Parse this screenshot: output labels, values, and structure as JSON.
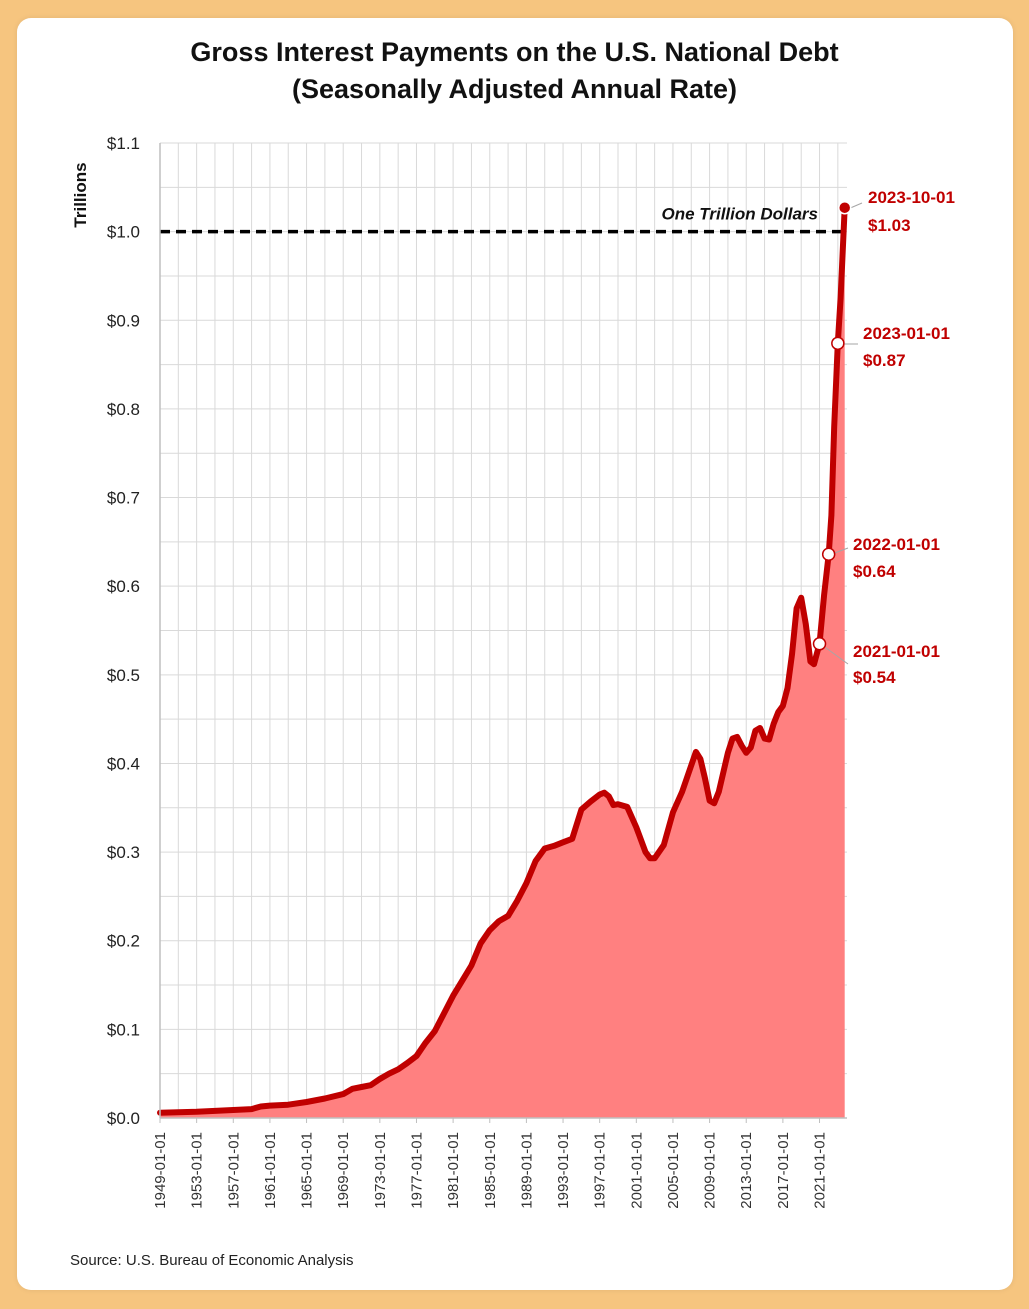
{
  "title_line1": "Gross Interest Payments on the U.S. National Debt",
  "title_line2": "(Seasonally Adjusted Annual Rate)",
  "source": "Source: U.S. Bureau of Economic Analysis",
  "colors": {
    "line": "#c00000",
    "area": "#ff8080",
    "reference": "#000000",
    "grid": "#d9d9d9"
  },
  "chart_data": {
    "type": "area",
    "ylabel": "Trillions",
    "ylim": [
      0.0,
      1.1
    ],
    "yticks": [
      {
        "value": 0.0,
        "label": "$0.0"
      },
      {
        "value": 0.1,
        "label": "$0.1"
      },
      {
        "value": 0.2,
        "label": "$0.2"
      },
      {
        "value": 0.3,
        "label": "$0.3"
      },
      {
        "value": 0.4,
        "label": "$0.4"
      },
      {
        "value": 0.5,
        "label": "$0.5"
      },
      {
        "value": 0.6,
        "label": "$0.6"
      },
      {
        "value": 0.7,
        "label": "$0.7"
      },
      {
        "value": 0.8,
        "label": "$0.8"
      },
      {
        "value": 0.9,
        "label": "$0.9"
      },
      {
        "value": 1.0,
        "label": "$1.0"
      },
      {
        "value": 1.1,
        "label": "$1.1"
      }
    ],
    "xlim": [
      1949,
      2024
    ],
    "xticks": [
      "1949-01-01",
      "1953-01-01",
      "1957-01-01",
      "1961-01-01",
      "1965-01-01",
      "1969-01-01",
      "1973-01-01",
      "1977-01-01",
      "1981-01-01",
      "1985-01-01",
      "1989-01-01",
      "1993-01-01",
      "1997-01-01",
      "2001-01-01",
      "2005-01-01",
      "2009-01-01",
      "2013-01-01",
      "2017-01-01",
      "2021-01-01"
    ],
    "grid": true,
    "reference_line": {
      "value": 1.0,
      "label": "One Trillion Dollars"
    },
    "series": [
      {
        "points": [
          [
            1949.0,
            0.006
          ],
          [
            1953.0,
            0.007
          ],
          [
            1957.0,
            0.009
          ],
          [
            1959.0,
            0.01
          ],
          [
            1960.0,
            0.013
          ],
          [
            1961.0,
            0.014
          ],
          [
            1963.0,
            0.015
          ],
          [
            1965.0,
            0.018
          ],
          [
            1967.0,
            0.022
          ],
          [
            1969.0,
            0.027
          ],
          [
            1970.0,
            0.033
          ],
          [
            1971.0,
            0.035
          ],
          [
            1972.0,
            0.037
          ],
          [
            1973.0,
            0.044
          ],
          [
            1974.0,
            0.05
          ],
          [
            1975.0,
            0.055
          ],
          [
            1976.0,
            0.062
          ],
          [
            1977.0,
            0.07
          ],
          [
            1978.0,
            0.085
          ],
          [
            1979.0,
            0.098
          ],
          [
            1980.0,
            0.118
          ],
          [
            1981.0,
            0.138
          ],
          [
            1982.0,
            0.155
          ],
          [
            1983.0,
            0.172
          ],
          [
            1984.0,
            0.197
          ],
          [
            1985.0,
            0.212
          ],
          [
            1986.0,
            0.222
          ],
          [
            1987.0,
            0.228
          ],
          [
            1988.0,
            0.245
          ],
          [
            1989.0,
            0.265
          ],
          [
            1990.0,
            0.29
          ],
          [
            1991.0,
            0.304
          ],
          [
            1992.0,
            0.307
          ],
          [
            1993.0,
            0.311
          ],
          [
            1994.0,
            0.315
          ],
          [
            1995.0,
            0.348
          ],
          [
            1996.0,
            0.357
          ],
          [
            1997.0,
            0.365
          ],
          [
            1997.5,
            0.367
          ],
          [
            1998.0,
            0.363
          ],
          [
            1998.5,
            0.353
          ],
          [
            1999.0,
            0.354
          ],
          [
            2000.0,
            0.351
          ],
          [
            2001.0,
            0.328
          ],
          [
            2002.0,
            0.3
          ],
          [
            2002.5,
            0.293
          ],
          [
            2003.0,
            0.293
          ],
          [
            2004.0,
            0.308
          ],
          [
            2005.0,
            0.345
          ],
          [
            2006.0,
            0.368
          ],
          [
            2007.0,
            0.398
          ],
          [
            2007.5,
            0.413
          ],
          [
            2008.0,
            0.405
          ],
          [
            2008.5,
            0.383
          ],
          [
            2009.0,
            0.358
          ],
          [
            2009.5,
            0.355
          ],
          [
            2010.0,
            0.368
          ],
          [
            2011.0,
            0.412
          ],
          [
            2011.5,
            0.428
          ],
          [
            2012.0,
            0.43
          ],
          [
            2012.5,
            0.42
          ],
          [
            2013.0,
            0.412
          ],
          [
            2013.5,
            0.418
          ],
          [
            2014.0,
            0.437
          ],
          [
            2014.5,
            0.44
          ],
          [
            2015.0,
            0.428
          ],
          [
            2015.5,
            0.427
          ],
          [
            2016.0,
            0.445
          ],
          [
            2016.5,
            0.458
          ],
          [
            2017.0,
            0.465
          ],
          [
            2017.5,
            0.485
          ],
          [
            2018.0,
            0.523
          ],
          [
            2018.5,
            0.575
          ],
          [
            2019.0,
            0.587
          ],
          [
            2019.5,
            0.557
          ],
          [
            2020.0,
            0.515
          ],
          [
            2020.4,
            0.512
          ],
          [
            2021.0,
            0.535
          ],
          [
            2021.5,
            0.59
          ],
          [
            2022.0,
            0.636
          ],
          [
            2022.3,
            0.68
          ],
          [
            2022.6,
            0.78
          ],
          [
            2023.0,
            0.874
          ],
          [
            2023.3,
            0.925
          ],
          [
            2023.5,
            0.97
          ],
          [
            2023.75,
            1.027
          ]
        ]
      }
    ],
    "annotations": [
      {
        "date": "2021-01-01",
        "x": 2021.0,
        "value": 0.535,
        "label_date": "2021-01-01",
        "label_value": "$0.54",
        "filled": false
      },
      {
        "date": "2022-01-01",
        "x": 2022.0,
        "value": 0.636,
        "label_date": "2022-01-01",
        "label_value": "$0.64",
        "filled": false
      },
      {
        "date": "2023-01-01",
        "x": 2023.0,
        "value": 0.874,
        "label_date": "2023-01-01",
        "label_value": "$0.87",
        "filled": false
      },
      {
        "date": "2023-10-01",
        "x": 2023.75,
        "value": 1.027,
        "label_date": "2023-10-01",
        "label_value": "$1.03",
        "filled": true
      }
    ]
  }
}
